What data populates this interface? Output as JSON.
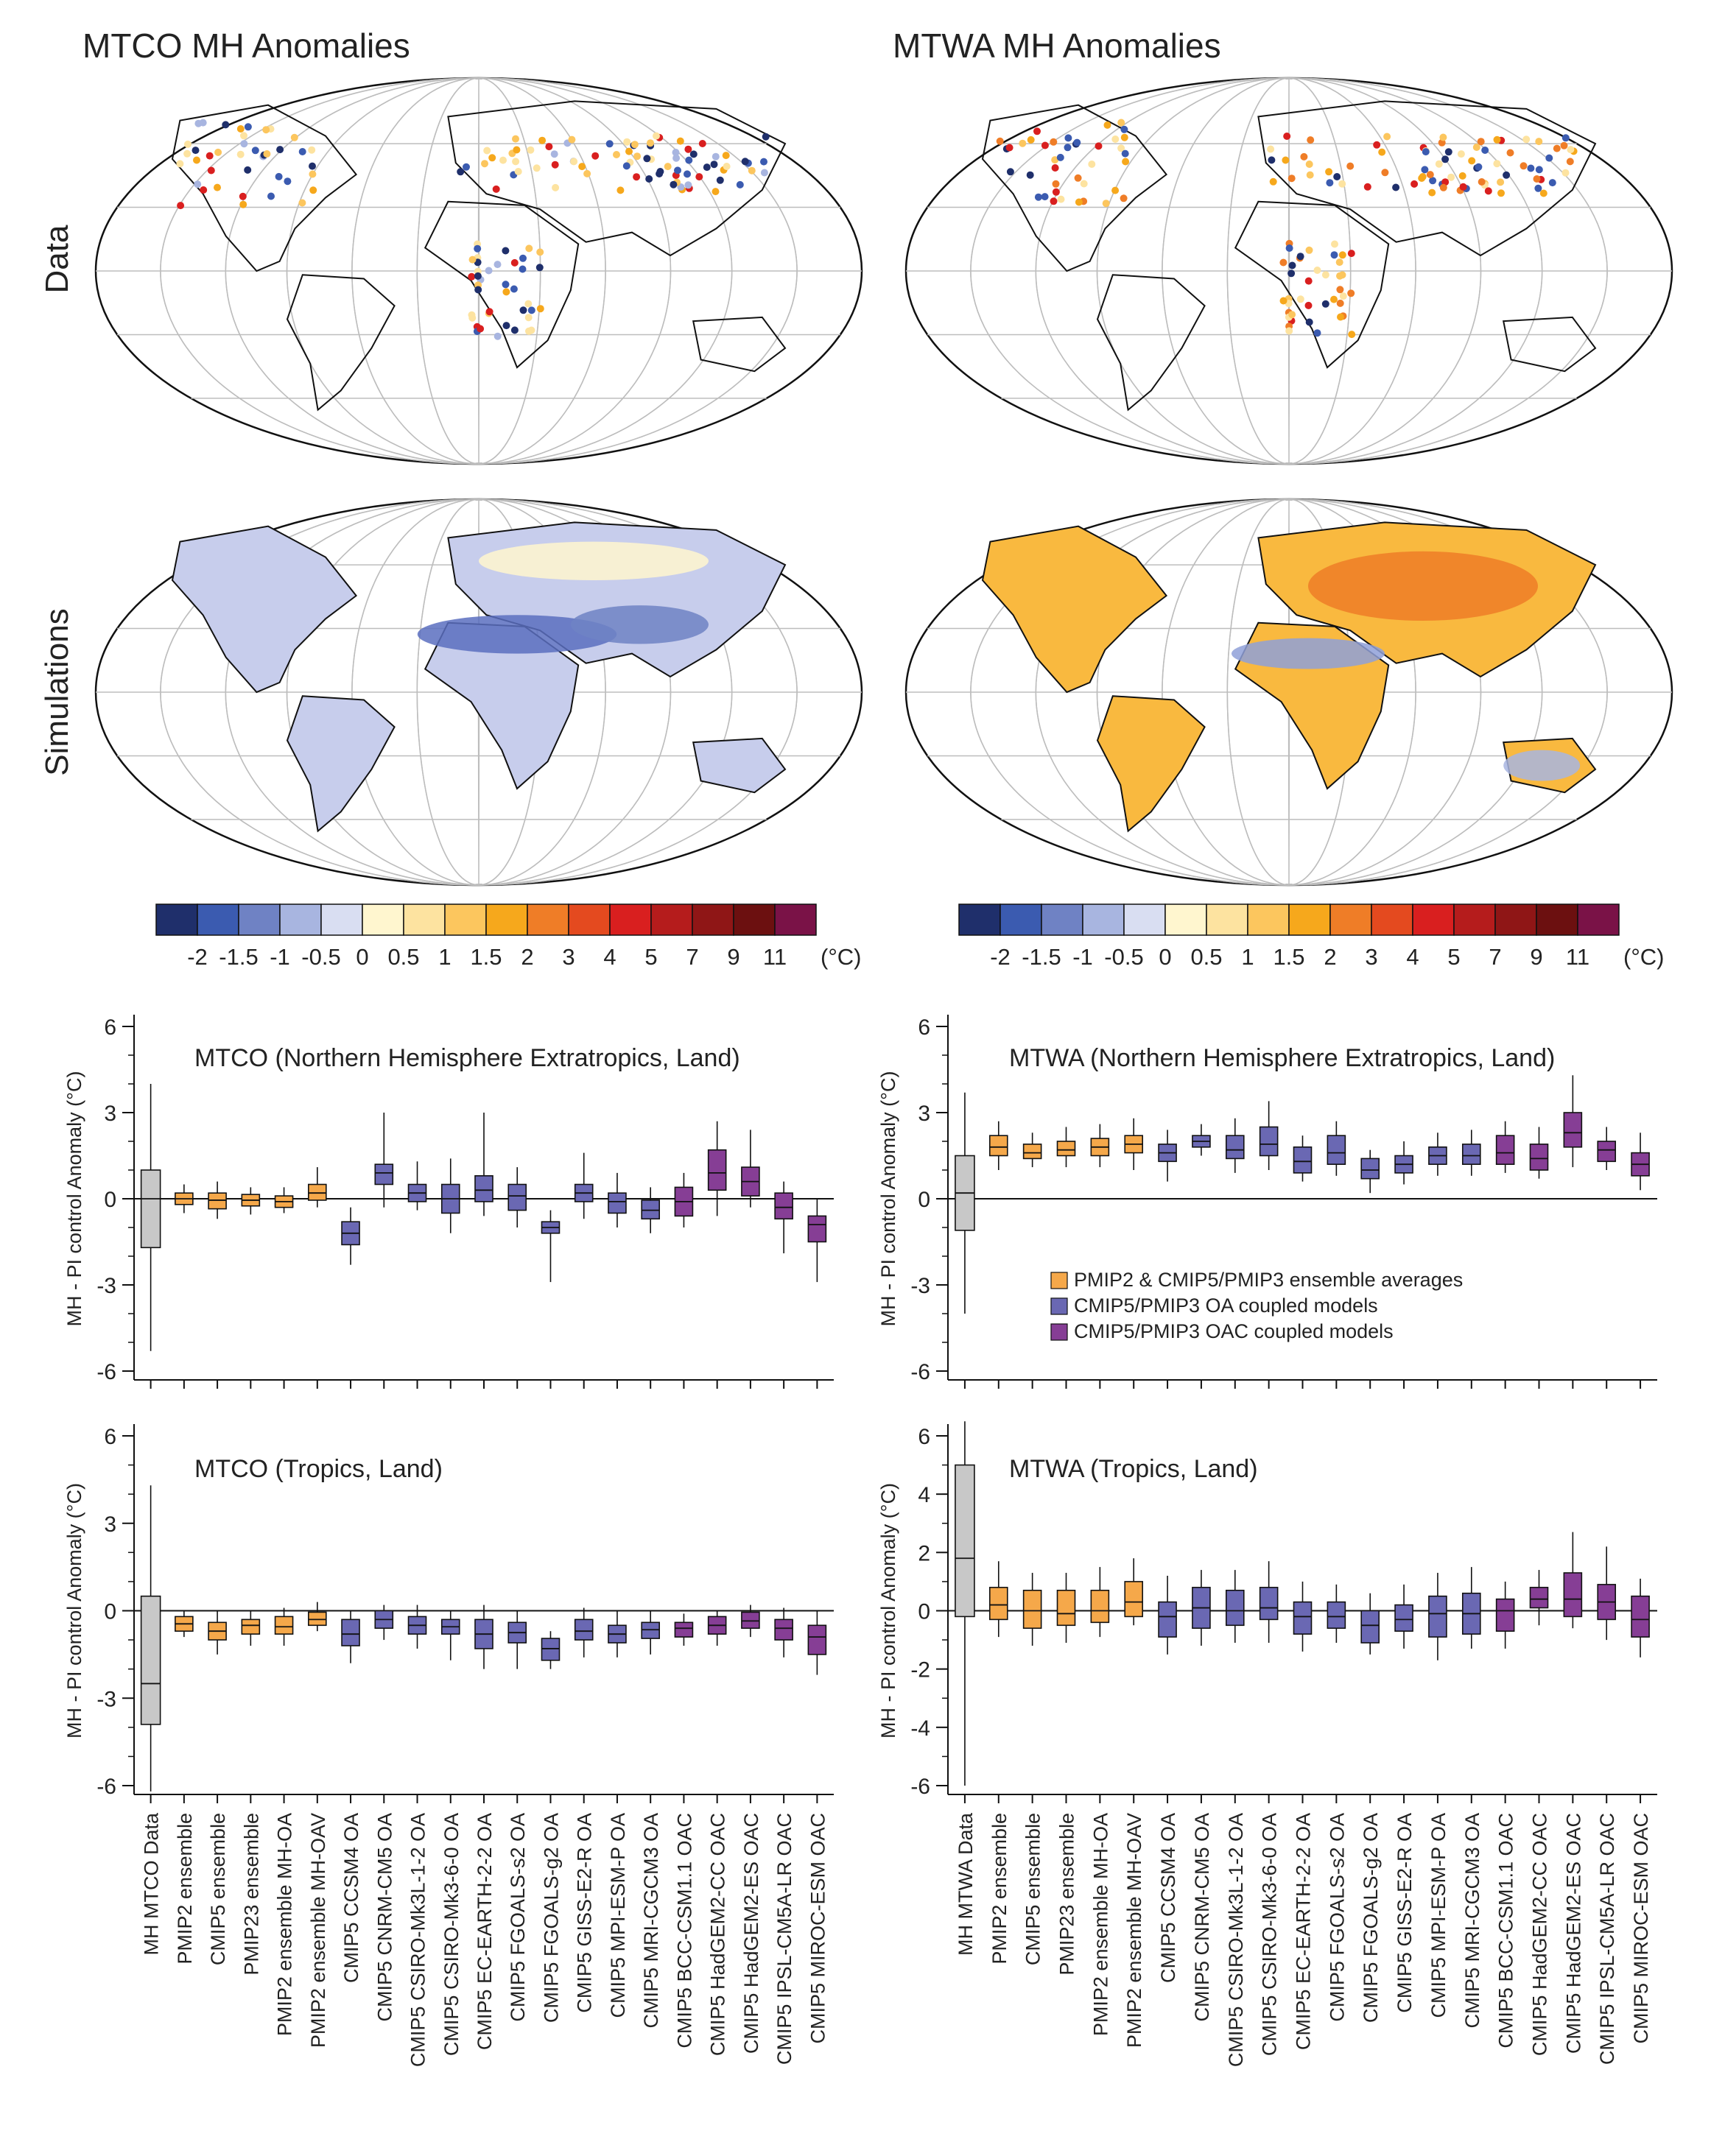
{
  "figure": {
    "left_title": "MTCO MH Anomalies",
    "right_title": "MTWA MH Anomalies",
    "row_labels": {
      "data": "Data",
      "simulations": "Simulations"
    },
    "colorbar": {
      "ticks": [
        "-2",
        "-1.5",
        "-1",
        "-0.5",
        "0",
        "0.5",
        "1",
        "1.5",
        "2",
        "3",
        "4",
        "5",
        "7",
        "9",
        "11"
      ],
      "unit": "(°C)",
      "colors": [
        "#1f2f6b",
        "#3b5bb0",
        "#6f82c4",
        "#a8b5e0",
        "#d9def2",
        "#fff6cf",
        "#fde3a0",
        "#fcc65e",
        "#f6a81c",
        "#ef7d27",
        "#e44a1f",
        "#d91f1f",
        "#b51c1c",
        "#8f1616",
        "#6c1010",
        "#7a1247"
      ]
    },
    "legend": {
      "items": [
        {
          "label": "PMIP2 & CMIP5/PMIP3 ensemble averages",
          "color": "#f5a84a"
        },
        {
          "label": "CMIP5/PMIP3 OA coupled models",
          "color": "#6a68b3"
        },
        {
          "label": "CMIP5/PMIP3 OAC coupled models",
          "color": "#863e95"
        }
      ]
    },
    "ylabel": "MH - PI control Anomaly (°C)",
    "xlabels_left": [
      "MH  MTCO Data",
      "PMIP2 ensemble",
      "CMIP5 ensemble",
      "PMIP23 ensemble",
      "PMIP2 ensemble MH-OA",
      "PMIP2 ensemble MH-OAV",
      "CMIP5 CCSM4 OA",
      "CMIP5 CNRM-CM5 OA",
      "CMIP5 CSIRO-Mk3L-1-2 OA",
      "CMIP5 CSIRO-Mk3-6-0 OA",
      "CMIP5 EC-EARTH-2-2 OA",
      "CMIP5 FGOALS-s2 OA",
      "CMIP5 FGOALS-g2 OA",
      "CMIP5 GISS-E2-R OA",
      "CMIP5 MPI-ESM-P OA",
      "CMIP5 MRI-CGCM3 OA",
      "CMIP5 BCC-CSM1.1 OAC",
      "CMIP5 HadGEM2-CC OAC",
      "CMIP5 HadGEM2-ES OAC",
      "CMIP5 IPSL-CM5A-LR OAC",
      "CMIP5 MIROC-ESM OAC"
    ],
    "xlabels_right": [
      "MH MTWA Data",
      "PMIP2 ensemble",
      "CMIP5 ensemble",
      "PMIP23 ensemble",
      "PMIP2 ensemble MH-OA",
      "PMIP2 ensemble MH-OAV",
      "CMIP5 CCSM4 OA",
      "CMIP5 CNRM-CM5 OA",
      "CMIP5 CSIRO-Mk3L-1-2 OA",
      "CMIP5 CSIRO-Mk3-6-0 OA",
      "CMIP5 EC-EARTH-2-2 OA",
      "CMIP5 FGOALS-s2 OA",
      "CMIP5 FGOALS-g2 OA",
      "CMIP5 GISS-E2-R OA",
      "CMIP5 MPI-ESM-P OA",
      "CMIP5 MRI-CGCM3 OA",
      "CMIP5 BCC-CSM1.1 OAC",
      "CMIP5 HadGEM2-CC OAC",
      "CMIP5 HadGEM2-ES OAC",
      "CMIP5 IPSL-CM5A-LR OAC",
      "CMIP5 MIROC-ESM OAC"
    ]
  },
  "chart_data": [
    {
      "type": "box",
      "title": "MTCO (Northern Hemisphere Extratropics, Land)",
      "ylabel": "MH - PI control Anomaly (°C)",
      "ylim": [
        -6,
        6
      ],
      "yticks": [
        6,
        3,
        0,
        -3,
        -6
      ],
      "groups": [
        "data",
        "ens",
        "ens",
        "ens",
        "ens",
        "ens",
        "oa",
        "oa",
        "oa",
        "oa",
        "oa",
        "oa",
        "oa",
        "oa",
        "oa",
        "oa",
        "oac",
        "oac",
        "oac",
        "oac",
        "oac"
      ],
      "boxes": [
        {
          "min": -5.3,
          "q1": -1.7,
          "median": 0.0,
          "q3": 1.0,
          "max": 4.0
        },
        {
          "min": -0.5,
          "q1": -0.2,
          "median": 0.0,
          "q3": 0.2,
          "max": 0.5
        },
        {
          "min": -0.7,
          "q1": -0.35,
          "median": -0.05,
          "q3": 0.2,
          "max": 0.6
        },
        {
          "min": -0.55,
          "q1": -0.25,
          "median": -0.05,
          "q3": 0.15,
          "max": 0.4
        },
        {
          "min": -0.5,
          "q1": -0.3,
          "median": -0.1,
          "q3": 0.1,
          "max": 0.4
        },
        {
          "min": -0.3,
          "q1": -0.05,
          "median": 0.2,
          "q3": 0.5,
          "max": 1.1
        },
        {
          "min": -2.3,
          "q1": -1.6,
          "median": -1.2,
          "q3": -0.8,
          "max": -0.3
        },
        {
          "min": -0.3,
          "q1": 0.5,
          "median": 0.9,
          "q3": 1.2,
          "max": 3.0
        },
        {
          "min": -0.4,
          "q1": -0.1,
          "median": 0.2,
          "q3": 0.5,
          "max": 1.3
        },
        {
          "min": -1.2,
          "q1": -0.5,
          "median": 0.0,
          "q3": 0.5,
          "max": 1.4
        },
        {
          "min": -0.6,
          "q1": -0.1,
          "median": 0.3,
          "q3": 0.8,
          "max": 3.0
        },
        {
          "min": -1.0,
          "q1": -0.4,
          "median": 0.1,
          "q3": 0.5,
          "max": 1.1
        },
        {
          "min": -2.9,
          "q1": -1.2,
          "median": -1.0,
          "q3": -0.8,
          "max": -0.4
        },
        {
          "min": -0.7,
          "q1": -0.1,
          "median": 0.2,
          "q3": 0.5,
          "max": 1.6
        },
        {
          "min": -1.0,
          "q1": -0.5,
          "median": -0.1,
          "q3": 0.2,
          "max": 0.9
        },
        {
          "min": -1.2,
          "q1": -0.7,
          "median": -0.4,
          "q3": -0.05,
          "max": 0.4
        },
        {
          "min": -1.0,
          "q1": -0.6,
          "median": -0.1,
          "q3": 0.4,
          "max": 0.9
        },
        {
          "min": -0.6,
          "q1": 0.3,
          "median": 0.9,
          "q3": 1.7,
          "max": 2.7
        },
        {
          "min": -0.3,
          "q1": 0.1,
          "median": 0.6,
          "q3": 1.1,
          "max": 2.4
        },
        {
          "min": -1.9,
          "q1": -0.7,
          "median": -0.3,
          "q3": 0.2,
          "max": 0.6
        },
        {
          "min": -2.9,
          "q1": -1.5,
          "median": -0.9,
          "q3": -0.6,
          "max": 0.0
        }
      ]
    },
    {
      "type": "box",
      "title": "MTWA (Northern Hemisphere Extratropics, Land)",
      "ylabel": "MH - PI control Anomaly (°C)",
      "ylim": [
        -6,
        6
      ],
      "yticks": [
        6,
        3,
        0,
        -3,
        -6
      ],
      "groups": [
        "data",
        "ens",
        "ens",
        "ens",
        "ens",
        "ens",
        "oa",
        "oa",
        "oa",
        "oa",
        "oa",
        "oa",
        "oa",
        "oa",
        "oa",
        "oa",
        "oac",
        "oac",
        "oac",
        "oac",
        "oac"
      ],
      "boxes": [
        {
          "min": -4.0,
          "q1": -1.1,
          "median": 0.2,
          "q3": 1.5,
          "max": 3.7
        },
        {
          "min": 1.0,
          "q1": 1.5,
          "median": 1.8,
          "q3": 2.2,
          "max": 2.7
        },
        {
          "min": 1.1,
          "q1": 1.4,
          "median": 1.6,
          "q3": 1.9,
          "max": 2.3
        },
        {
          "min": 1.1,
          "q1": 1.5,
          "median": 1.7,
          "q3": 2.0,
          "max": 2.5
        },
        {
          "min": 1.1,
          "q1": 1.5,
          "median": 1.8,
          "q3": 2.1,
          "max": 2.6
        },
        {
          "min": 1.0,
          "q1": 1.6,
          "median": 1.9,
          "q3": 2.2,
          "max": 2.8
        },
        {
          "min": 0.6,
          "q1": 1.3,
          "median": 1.6,
          "q3": 1.9,
          "max": 2.4
        },
        {
          "min": 1.5,
          "q1": 1.8,
          "median": 2.0,
          "q3": 2.2,
          "max": 2.6
        },
        {
          "min": 0.9,
          "q1": 1.4,
          "median": 1.7,
          "q3": 2.2,
          "max": 2.8
        },
        {
          "min": 1.0,
          "q1": 1.5,
          "median": 1.9,
          "q3": 2.5,
          "max": 3.4
        },
        {
          "min": 0.6,
          "q1": 0.9,
          "median": 1.3,
          "q3": 1.8,
          "max": 2.2
        },
        {
          "min": 0.8,
          "q1": 1.2,
          "median": 1.6,
          "q3": 2.2,
          "max": 2.7
        },
        {
          "min": 0.2,
          "q1": 0.7,
          "median": 1.0,
          "q3": 1.4,
          "max": 1.7
        },
        {
          "min": 0.5,
          "q1": 0.9,
          "median": 1.2,
          "q3": 1.5,
          "max": 2.0
        },
        {
          "min": 0.8,
          "q1": 1.2,
          "median": 1.5,
          "q3": 1.8,
          "max": 2.3
        },
        {
          "min": 0.8,
          "q1": 1.2,
          "median": 1.5,
          "q3": 1.9,
          "max": 2.4
        },
        {
          "min": 0.9,
          "q1": 1.2,
          "median": 1.6,
          "q3": 2.2,
          "max": 2.7
        },
        {
          "min": 0.7,
          "q1": 1.0,
          "median": 1.4,
          "q3": 1.9,
          "max": 2.5
        },
        {
          "min": 1.1,
          "q1": 1.8,
          "median": 2.3,
          "q3": 3.0,
          "max": 4.3
        },
        {
          "min": 1.0,
          "q1": 1.3,
          "median": 1.7,
          "q3": 2.0,
          "max": 2.5
        },
        {
          "min": 0.3,
          "q1": 0.8,
          "median": 1.2,
          "q3": 1.6,
          "max": 2.3
        }
      ]
    },
    {
      "type": "box",
      "title": "MTCO (Tropics, Land)",
      "ylabel": "MH - PI control Anomaly (°C)",
      "ylim": [
        -6,
        6
      ],
      "yticks": [
        6,
        3,
        0,
        -3,
        -6
      ],
      "groups": [
        "data",
        "ens",
        "ens",
        "ens",
        "ens",
        "ens",
        "oa",
        "oa",
        "oa",
        "oa",
        "oa",
        "oa",
        "oa",
        "oa",
        "oa",
        "oa",
        "oac",
        "oac",
        "oac",
        "oac",
        "oac"
      ],
      "boxes": [
        {
          "min": -6.2,
          "q1": -3.9,
          "median": -2.5,
          "q3": 0.5,
          "max": 4.3
        },
        {
          "min": -0.9,
          "q1": -0.7,
          "median": -0.45,
          "q3": -0.2,
          "max": 0.0
        },
        {
          "min": -1.5,
          "q1": -1.0,
          "median": -0.7,
          "q3": -0.4,
          "max": 0.0
        },
        {
          "min": -1.2,
          "q1": -0.8,
          "median": -0.5,
          "q3": -0.3,
          "max": 0.0
        },
        {
          "min": -1.2,
          "q1": -0.8,
          "median": -0.55,
          "q3": -0.2,
          "max": 0.1
        },
        {
          "min": -0.7,
          "q1": -0.5,
          "median": -0.3,
          "q3": -0.05,
          "max": 0.3
        },
        {
          "min": -1.8,
          "q1": -1.2,
          "median": -0.8,
          "q3": -0.3,
          "max": 0.0
        },
        {
          "min": -1.0,
          "q1": -0.6,
          "median": -0.3,
          "q3": 0.0,
          "max": 0.2
        },
        {
          "min": -1.3,
          "q1": -0.8,
          "median": -0.5,
          "q3": -0.2,
          "max": 0.2
        },
        {
          "min": -1.7,
          "q1": -0.8,
          "median": -0.55,
          "q3": -0.3,
          "max": 0.0
        },
        {
          "min": -2.0,
          "q1": -1.3,
          "median": -0.8,
          "q3": -0.3,
          "max": 0.2
        },
        {
          "min": -2.0,
          "q1": -1.1,
          "median": -0.75,
          "q3": -0.4,
          "max": 0.0
        },
        {
          "min": -2.0,
          "q1": -1.7,
          "median": -1.3,
          "q3": -0.95,
          "max": -0.7
        },
        {
          "min": -1.6,
          "q1": -1.0,
          "median": -0.7,
          "q3": -0.3,
          "max": 0.1
        },
        {
          "min": -1.6,
          "q1": -1.1,
          "median": -0.8,
          "q3": -0.5,
          "max": 0.0
        },
        {
          "min": -1.5,
          "q1": -0.95,
          "median": -0.65,
          "q3": -0.4,
          "max": 0.0
        },
        {
          "min": -1.2,
          "q1": -0.9,
          "median": -0.6,
          "q3": -0.4,
          "max": -0.1
        },
        {
          "min": -1.2,
          "q1": -0.8,
          "median": -0.5,
          "q3": -0.2,
          "max": 0.0
        },
        {
          "min": -0.9,
          "q1": -0.6,
          "median": -0.35,
          "q3": -0.05,
          "max": 0.2
        },
        {
          "min": -1.6,
          "q1": -1.0,
          "median": -0.6,
          "q3": -0.3,
          "max": 0.1
        },
        {
          "min": -2.2,
          "q1": -1.5,
          "median": -0.9,
          "q3": -0.5,
          "max": 0.0
        }
      ]
    },
    {
      "type": "box",
      "title": "MTWA (Tropics, Land)",
      "ylabel": "MH - PI control Anomaly (°C)",
      "ylim": [
        -6,
        6
      ],
      "yticks": [
        6,
        4,
        2,
        0,
        -2,
        -4,
        -6
      ],
      "groups": [
        "data",
        "ens",
        "ens",
        "ens",
        "ens",
        "ens",
        "oa",
        "oa",
        "oa",
        "oa",
        "oa",
        "oa",
        "oa",
        "oa",
        "oa",
        "oa",
        "oac",
        "oac",
        "oac",
        "oac",
        "oac"
      ],
      "boxes": [
        {
          "min": -6.0,
          "q1": -0.2,
          "median": 1.8,
          "q3": 5.0,
          "max": 6.5
        },
        {
          "min": -0.9,
          "q1": -0.3,
          "median": 0.2,
          "q3": 0.8,
          "max": 1.7
        },
        {
          "min": -1.2,
          "q1": -0.6,
          "median": 0.0,
          "q3": 0.7,
          "max": 1.3
        },
        {
          "min": -1.1,
          "q1": -0.5,
          "median": -0.1,
          "q3": 0.7,
          "max": 1.3
        },
        {
          "min": -0.9,
          "q1": -0.4,
          "median": 0.0,
          "q3": 0.7,
          "max": 1.5
        },
        {
          "min": -0.5,
          "q1": -0.2,
          "median": 0.3,
          "q3": 1.0,
          "max": 1.8
        },
        {
          "min": -1.5,
          "q1": -0.9,
          "median": -0.2,
          "q3": 0.3,
          "max": 1.2
        },
        {
          "min": -1.2,
          "q1": -0.6,
          "median": 0.1,
          "q3": 0.8,
          "max": 1.4
        },
        {
          "min": -1.1,
          "q1": -0.5,
          "median": 0.0,
          "q3": 0.7,
          "max": 1.4
        },
        {
          "min": -1.1,
          "q1": -0.3,
          "median": 0.1,
          "q3": 0.8,
          "max": 1.7
        },
        {
          "min": -1.4,
          "q1": -0.8,
          "median": -0.2,
          "q3": 0.3,
          "max": 1.0
        },
        {
          "min": -1.1,
          "q1": -0.6,
          "median": -0.2,
          "q3": 0.3,
          "max": 0.9
        },
        {
          "min": -1.5,
          "q1": -1.1,
          "median": -0.5,
          "q3": 0.0,
          "max": 0.6
        },
        {
          "min": -1.3,
          "q1": -0.7,
          "median": -0.3,
          "q3": 0.2,
          "max": 0.9
        },
        {
          "min": -1.7,
          "q1": -0.9,
          "median": -0.1,
          "q3": 0.5,
          "max": 1.3
        },
        {
          "min": -1.3,
          "q1": -0.8,
          "median": -0.1,
          "q3": 0.6,
          "max": 1.5
        },
        {
          "min": -1.3,
          "q1": -0.7,
          "median": 0.0,
          "q3": 0.4,
          "max": 1.0
        },
        {
          "min": -0.5,
          "q1": 0.1,
          "median": 0.4,
          "q3": 0.8,
          "max": 1.4
        },
        {
          "min": -0.6,
          "q1": -0.2,
          "median": 0.4,
          "q3": 1.3,
          "max": 2.7
        },
        {
          "min": -1.0,
          "q1": -0.3,
          "median": 0.3,
          "q3": 0.9,
          "max": 2.2
        },
        {
          "min": -1.6,
          "q1": -0.9,
          "median": -0.3,
          "q3": 0.5,
          "max": 1.1
        }
      ]
    }
  ]
}
